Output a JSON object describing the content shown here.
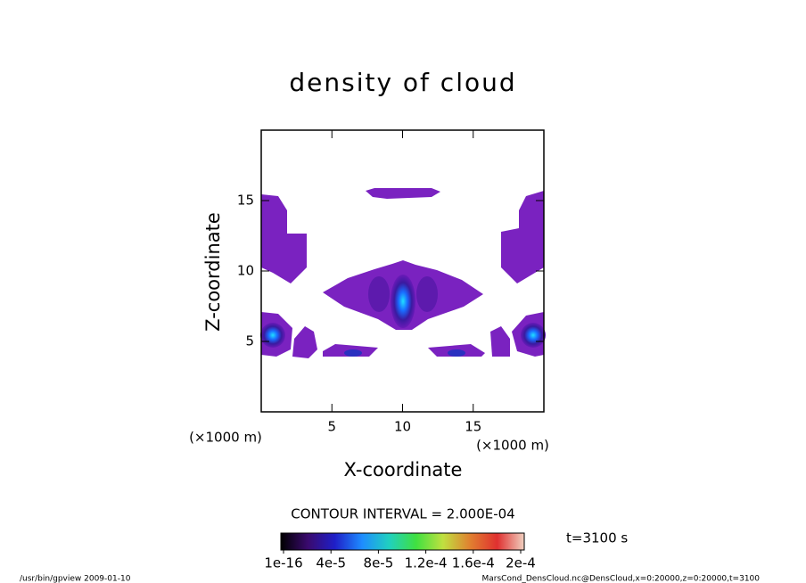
{
  "chart_data": {
    "type": "contour",
    "title": "density of cloud",
    "x_label": "X-coordinate",
    "y_label": "Z-coordinate",
    "x_unit": "(×1000 m)",
    "y_unit": "(×1000 m)",
    "xlim": [
      0,
      20
    ],
    "xticks": [
      5,
      10,
      15
    ],
    "ylim": [
      0,
      20
    ],
    "yticks": [
      5,
      10,
      15
    ],
    "contour_interval": "CONTOUR INTERVAL = 2.000E-04",
    "time_label": "t=3100 s",
    "colorbar": {
      "lim": [
        0,
        0.0002
      ],
      "colors": [
        "#000000",
        "#3a0a6e",
        "#1f1fc8",
        "#1e8cff",
        "#20d0c0",
        "#40e040",
        "#c0e040",
        "#e08030",
        "#e03030",
        "#f0d0c0"
      ],
      "ticks": [
        {
          "value": 1e-16,
          "label": "1e-16"
        },
        {
          "value": 4e-05,
          "label": "4e-5"
        },
        {
          "value": 8e-05,
          "label": "8e-5"
        },
        {
          "value": 0.00012,
          "label": "1.2e-4"
        },
        {
          "value": 0.00016,
          "label": "1.6e-4"
        },
        {
          "value": 0.0002,
          "label": "2e-4"
        }
      ]
    },
    "footer_left": "/usr/bin/gpview  2009-01-10",
    "footer_right": "MarsCond_DensCloud.nc@DensCloud,x=0:20000,z=0:20000,t=3100"
  }
}
